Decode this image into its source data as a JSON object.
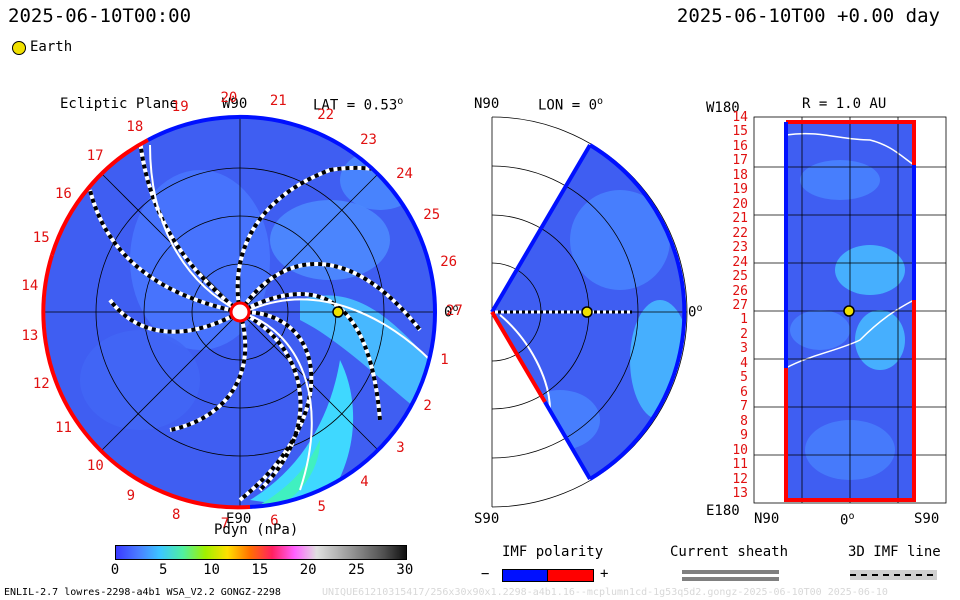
{
  "header": {
    "left_time": "2025-06-10T00:00",
    "right_time": "2025-06-10T00 +0.00 day"
  },
  "legend_earth": "Earth",
  "ecliptic": {
    "title": "Ecliptic Plane",
    "lat_label": "LAT = 0.53",
    "lat_sup": "o",
    "top_label": "W90",
    "bottom_label": "E90",
    "right_label": "0",
    "right_sup": "o",
    "carrington_labels": [
      "1",
      "2",
      "3",
      "4",
      "5",
      "6",
      "7",
      "8",
      "9",
      "10",
      "11",
      "12",
      "13",
      "14",
      "15",
      "16",
      "17",
      "18",
      "19",
      "20",
      "21",
      "22",
      "23",
      "24",
      "25",
      "26",
      "27"
    ]
  },
  "meridional": {
    "top_left": "N90",
    "lon_label": "LON = 0",
    "lon_sup": "o",
    "bottom_left": "S90",
    "right_label": "0",
    "right_sup": "o"
  },
  "radial": {
    "top_left": "W180",
    "r_label": "R = 1.0 AU",
    "bottom_left": "E180",
    "x_left": "N90",
    "x_mid": "0",
    "x_mid_sup": "o",
    "x_right": "S90",
    "y_labels": [
      "14",
      "15",
      "16",
      "17",
      "18",
      "19",
      "20",
      "21",
      "22",
      "23",
      "24",
      "25",
      "26",
      "27",
      "1",
      "2",
      "3",
      "4",
      "5",
      "6",
      "7",
      "8",
      "9",
      "10",
      "11",
      "12",
      "13"
    ]
  },
  "colorbar": {
    "title": "Pdyn (nPa)",
    "ticks": [
      "0",
      "5",
      "10",
      "15",
      "20",
      "25",
      "30"
    ],
    "stops": [
      "#3a3aff",
      "#4a7cff",
      "#3cc8ff",
      "#50f0a0",
      "#a0f000",
      "#ffe000",
      "#ff7000",
      "#ff2060",
      "#ff60ff",
      "#e0e0e0",
      "#b0b0b0",
      "#808080",
      "#505050",
      "#101010"
    ]
  },
  "imf": {
    "title": "IMF polarity",
    "minus": "−",
    "plus": "+",
    "neg_color": "#0010ff",
    "pos_color": "#ff0000"
  },
  "sheath": {
    "title": "Current sheath"
  },
  "imf3d": {
    "title": "3D IMF line"
  },
  "footer": {
    "left": "ENLIL-2.7 lowres-2298-a4b1 WSA_V2.2 GONGZ-2298",
    "right": "UNIQUE61210315417/256x30x90x1.2298-a4b1.16--mcplumn1cd-1g53q5d2.gongz-2025-06-10T00  2025-06-10"
  },
  "colors": {
    "background_blue": "#3f5ef2",
    "light_blue": "#4a9cff",
    "cyan": "#3fe0ff",
    "positive": "#ff0000",
    "negative": "#0010ff",
    "earth": "#f0e000"
  }
}
